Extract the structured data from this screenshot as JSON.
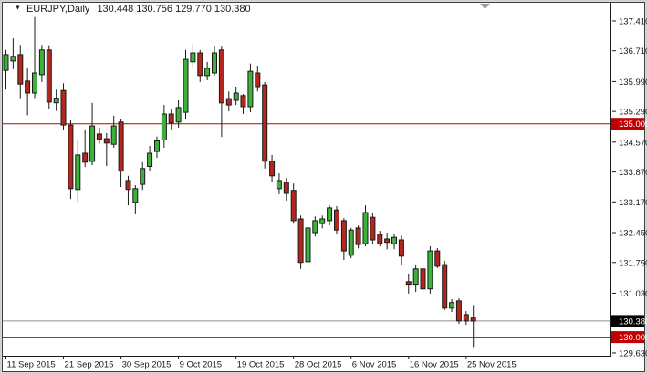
{
  "window": {
    "symbol_timeframe": "EURJPY,Daily",
    "ohlc_readout": "130.448 130.756 129.770 130.380",
    "dropdown_triangle": "▼"
  },
  "colors": {
    "bull_fill": "#3bb33b",
    "bear_fill": "#b3271e",
    "candle_outline": "#1a1a1a",
    "wick": "#1a1a1a",
    "level_line": "#c00000",
    "bid_line": "#8f8f8f",
    "axis_text": "#1a1a1a",
    "frame": "#3f3f3f",
    "current_price_box_bg": "#000000",
    "level_price_box_bg": "#c00000",
    "price_box_text": "#ffffff",
    "shift_marker": "#989898",
    "background": "#ffffff"
  },
  "y_axis": {
    "ticks": [
      "137.410",
      "136.710",
      "135.990",
      "135.290",
      "134.570",
      "133.870",
      "133.170",
      "132.450",
      "131.750",
      "131.030",
      "129.630"
    ],
    "tick_values": [
      137.41,
      136.71,
      135.99,
      135.29,
      134.57,
      133.87,
      133.17,
      132.45,
      131.75,
      131.03,
      129.63
    ],
    "price_boxes": [
      {
        "label": "130.380",
        "value": 130.38,
        "type": "current"
      },
      {
        "label": "130.000",
        "value": 130.0,
        "type": "level"
      },
      {
        "label": "135.000",
        "value": 135.0,
        "type": "level"
      }
    ]
  },
  "x_axis": {
    "labels": [
      {
        "text": "11 Sep 2015",
        "candle_index": 0
      },
      {
        "text": "21 Sep 2015",
        "candle_index": 8
      },
      {
        "text": "30 Sep 2015",
        "candle_index": 16
      },
      {
        "text": "9 Oct 2015",
        "candle_index": 24
      },
      {
        "text": "19 Oct 2015",
        "candle_index": 32
      },
      {
        "text": "28 Oct 2015",
        "candle_index": 40
      },
      {
        "text": "6 Nov 2015",
        "candle_index": 48
      },
      {
        "text": "16 Nov 2015",
        "candle_index": 56
      },
      {
        "text": "25 Nov 2015",
        "candle_index": 64
      }
    ]
  },
  "chart_data": {
    "type": "candlestick",
    "symbol": "EURJPY",
    "timeframe": "Daily",
    "title": "EURJPY,Daily 130.448 130.756 129.770 130.380",
    "horizontal_levels": [
      135.0,
      130.0
    ],
    "bid_price": 130.38,
    "last_candle_ohlc": {
      "open": 130.448,
      "high": 130.756,
      "low": 129.77,
      "close": 130.38
    },
    "y_range": [
      129.565,
      137.58
    ],
    "grid": false,
    "candles_ohlc": [
      [
        136.25,
        136.73,
        135.8,
        136.62
      ],
      [
        136.47,
        137.0,
        136.28,
        136.58
      ],
      [
        136.62,
        136.85,
        135.6,
        135.93
      ],
      [
        136.0,
        136.3,
        135.2,
        135.72
      ],
      [
        135.72,
        137.5,
        135.6,
        136.19
      ],
      [
        136.15,
        136.85,
        135.98,
        136.73
      ],
      [
        136.73,
        136.84,
        135.35,
        135.51
      ],
      [
        135.49,
        135.8,
        135.3,
        135.6
      ],
      [
        135.78,
        135.95,
        134.85,
        134.97
      ],
      [
        134.97,
        135.08,
        133.24,
        133.48
      ],
      [
        133.46,
        134.63,
        133.16,
        134.27
      ],
      [
        134.31,
        134.87,
        133.99,
        134.1
      ],
      [
        134.12,
        135.49,
        134.03,
        134.95
      ],
      [
        134.76,
        134.91,
        134.53,
        134.63
      ],
      [
        134.65,
        134.78,
        134.01,
        134.55
      ],
      [
        134.52,
        135.19,
        134.44,
        134.95
      ],
      [
        135.04,
        135.12,
        133.52,
        133.89
      ],
      [
        133.67,
        133.78,
        133.09,
        133.46
      ],
      [
        133.16,
        133.56,
        132.88,
        133.48
      ],
      [
        133.58,
        134.1,
        133.45,
        133.95
      ],
      [
        134.0,
        134.48,
        133.9,
        134.31
      ],
      [
        134.35,
        134.7,
        134.2,
        134.6
      ],
      [
        134.62,
        135.44,
        134.44,
        135.23
      ],
      [
        135.23,
        135.34,
        134.87,
        135.02
      ],
      [
        135.04,
        135.55,
        134.91,
        135.38
      ],
      [
        135.27,
        136.73,
        135.12,
        136.51
      ],
      [
        136.45,
        136.87,
        136.3,
        136.66
      ],
      [
        136.66,
        136.73,
        135.98,
        136.13
      ],
      [
        136.13,
        136.45,
        136.02,
        136.3
      ],
      [
        136.19,
        136.83,
        136.13,
        136.66
      ],
      [
        136.73,
        136.83,
        134.69,
        135.49
      ],
      [
        135.59,
        135.76,
        135.29,
        135.44
      ],
      [
        135.55,
        135.87,
        135.44,
        135.72
      ],
      [
        135.66,
        135.7,
        135.23,
        135.4
      ],
      [
        135.4,
        136.41,
        135.27,
        136.23
      ],
      [
        136.19,
        136.36,
        135.76,
        135.87
      ],
      [
        135.91,
        135.98,
        133.95,
        134.12
      ],
      [
        134.12,
        134.27,
        133.63,
        133.78
      ],
      [
        133.48,
        133.84,
        133.35,
        133.67
      ],
      [
        133.63,
        133.73,
        133.2,
        133.37
      ],
      [
        133.44,
        133.6,
        132.66,
        132.73
      ],
      [
        132.77,
        132.85,
        131.6,
        131.75
      ],
      [
        131.77,
        132.62,
        131.66,
        132.56
      ],
      [
        132.45,
        132.83,
        132.36,
        132.73
      ],
      [
        132.66,
        132.85,
        132.55,
        132.77
      ],
      [
        132.73,
        133.09,
        132.62,
        133.03
      ],
      [
        132.98,
        133.07,
        132.41,
        132.51
      ],
      [
        132.73,
        132.79,
        131.81,
        132.02
      ],
      [
        131.92,
        132.56,
        131.85,
        132.51
      ],
      [
        132.56,
        132.62,
        132.08,
        132.17
      ],
      [
        132.19,
        133.09,
        132.13,
        132.92
      ],
      [
        132.81,
        132.9,
        132.19,
        132.28
      ],
      [
        132.41,
        132.49,
        132.13,
        132.19
      ],
      [
        132.3,
        132.45,
        132.06,
        132.22
      ],
      [
        132.19,
        132.41,
        132.06,
        132.34
      ],
      [
        132.28,
        132.38,
        131.7,
        131.9
      ],
      [
        131.3,
        131.49,
        131.02,
        131.24
      ],
      [
        131.24,
        131.7,
        131.06,
        131.6
      ],
      [
        131.6,
        131.68,
        131.02,
        131.13
      ],
      [
        131.13,
        132.13,
        131.02,
        132.02
      ],
      [
        132.02,
        132.09,
        131.62,
        131.66
      ],
      [
        131.7,
        131.79,
        130.63,
        130.68
      ],
      [
        130.68,
        130.89,
        130.59,
        130.81
      ],
      [
        130.85,
        130.91,
        130.31,
        130.38
      ],
      [
        130.53,
        130.61,
        130.29,
        130.38
      ],
      [
        130.448,
        130.756,
        129.77,
        130.38
      ]
    ]
  }
}
